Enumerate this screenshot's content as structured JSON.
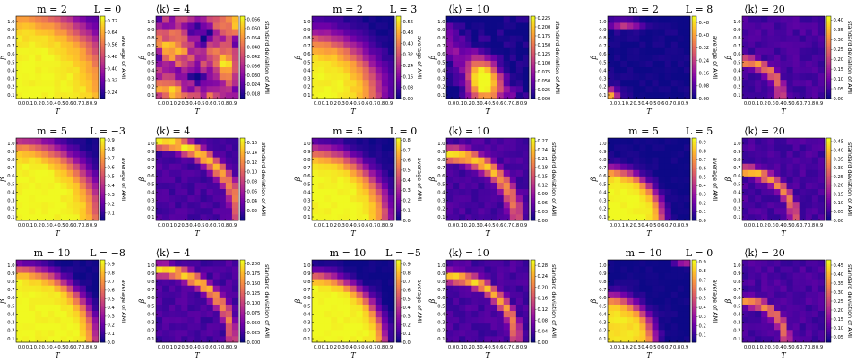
{
  "figure": {
    "colormap": "plasma",
    "colormap_stops": [
      "#0d0887",
      "#46039f",
      "#7201a8",
      "#9c179e",
      "#bd3786",
      "#d8576b",
      "#ed7953",
      "#fb9f3a",
      "#fdca26",
      "#f0f921"
    ],
    "x_ticks": [
      "0.0",
      "0.1",
      "0.2",
      "0.3",
      "0.4",
      "0.5",
      "0.6",
      "0.7",
      "0.8",
      "0.9"
    ],
    "y_ticks": [
      "0.1",
      "0.2",
      "0.3",
      "0.4",
      "0.5",
      "0.6",
      "0.7",
      "0.8",
      "0.9",
      "1.0"
    ]
  },
  "chart_data": [
    {
      "type": "heatmap",
      "group": 0,
      "panel": "average",
      "title": {
        "m": "m = 2",
        "L": "L = 0",
        "k": "⟨k⟩ = 4"
      },
      "xlabel": "T",
      "ylabel": "β",
      "cblabel": "average of AMI",
      "cb_ticks": [
        "0.24",
        "0.32",
        "0.40",
        "0.48",
        "0.56",
        "0.64",
        "0.72"
      ],
      "vmin": 0.2,
      "vmax": 0.75,
      "pattern": "avg",
      "params": {
        "r": 1.1,
        "w": 0.35
      }
    },
    {
      "type": "heatmap",
      "group": 0,
      "panel": "std",
      "xlabel": "T",
      "ylabel": "β",
      "cblabel": "standard deviation of AMI",
      "cb_ticks": [
        "0.018",
        "0.024",
        "0.030",
        "0.036",
        "0.042",
        "0.048",
        "0.054",
        "0.060",
        "0.066"
      ],
      "vmin": 0.015,
      "vmax": 0.068,
      "pattern": "noise",
      "params": {}
    },
    {
      "type": "heatmap",
      "group": 1,
      "panel": "average",
      "title": {
        "m": "m = 2",
        "L": "L = 3",
        "k": "⟨k⟩ = 10"
      },
      "xlabel": "T",
      "ylabel": "β",
      "cblabel": "average of AMI",
      "cb_ticks": [
        "0.00",
        "0.08",
        "0.16",
        "0.24",
        "0.32",
        "0.40",
        "0.48",
        "0.56"
      ],
      "vmin": 0,
      "vmax": 0.6,
      "pattern": "avg",
      "params": {
        "r": 0.75,
        "w": 0.3
      }
    },
    {
      "type": "heatmap",
      "group": 1,
      "panel": "std",
      "xlabel": "T",
      "ylabel": "β",
      "cblabel": "standard deviation of AMI",
      "cb_ticks": [
        "0.000",
        "0.025",
        "0.050",
        "0.075",
        "0.100",
        "0.125",
        "0.150",
        "0.175",
        "0.200",
        "0.225"
      ],
      "vmin": 0,
      "vmax": 0.23,
      "pattern": "blob",
      "params": {
        "cx": 0.45,
        "cy": 0.2,
        "s": 0.18
      }
    },
    {
      "type": "heatmap",
      "group": 2,
      "panel": "average",
      "title": {
        "m": "m = 2",
        "L": "L = 8",
        "k": "⟨k⟩ = 20"
      },
      "xlabel": "T",
      "ylabel": "β",
      "cblabel": "average of AMI",
      "cb_ticks": [
        "0.00",
        "0.08",
        "0.16",
        "0.24",
        "0.32",
        "0.40",
        "0.48"
      ],
      "vmin": 0,
      "vmax": 0.52,
      "pattern": "corner",
      "params": {}
    },
    {
      "type": "heatmap",
      "group": 2,
      "panel": "std",
      "xlabel": "T",
      "ylabel": "β",
      "cblabel": "standard deviation of AMI",
      "cb_ticks": [
        "0.00",
        "0.05",
        "0.10",
        "0.15",
        "0.20",
        "0.25",
        "0.30",
        "0.35",
        "0.40"
      ],
      "vmin": 0,
      "vmax": 0.42,
      "pattern": "ring",
      "params": {
        "r": 0.45,
        "w": 0.07
      }
    },
    {
      "type": "heatmap",
      "group": 3,
      "panel": "average",
      "title": {
        "m": "m = 5",
        "L": "L = −3",
        "k": "⟨k⟩ = 4"
      },
      "xlabel": "T",
      "ylabel": "β",
      "cblabel": "average of AMI",
      "cb_ticks": [
        "0.1",
        "0.2",
        "0.3",
        "0.4",
        "0.5",
        "0.6",
        "0.7",
        "0.8",
        "0.9"
      ],
      "vmin": 0.02,
      "vmax": 0.92,
      "pattern": "avg",
      "params": {
        "r": 0.95,
        "w": 0.22
      }
    },
    {
      "type": "heatmap",
      "group": 3,
      "panel": "std",
      "xlabel": "T",
      "ylabel": "β",
      "cblabel": "standard deviation of AMI",
      "cb_ticks": [
        "0.02",
        "0.04",
        "0.06",
        "0.08",
        "0.10",
        "0.12",
        "0.14",
        "0.16"
      ],
      "vmin": 0,
      "vmax": 0.17,
      "pattern": "ring",
      "params": {
        "r": 0.95,
        "w": 0.09
      }
    },
    {
      "type": "heatmap",
      "group": 4,
      "panel": "average",
      "title": {
        "m": "m = 5",
        "L": "L = 0",
        "k": "⟨k⟩ = 10"
      },
      "xlabel": "T",
      "ylabel": "β",
      "cblabel": "average of AMI",
      "cb_ticks": [
        "0.0",
        "0.1",
        "0.2",
        "0.3",
        "0.4",
        "0.5",
        "0.6",
        "0.7",
        "0.8"
      ],
      "vmin": 0,
      "vmax": 0.82,
      "pattern": "avg",
      "params": {
        "r": 0.85,
        "w": 0.2
      }
    },
    {
      "type": "heatmap",
      "group": 4,
      "panel": "std",
      "xlabel": "T",
      "ylabel": "β",
      "cblabel": "standard deviation of AMI",
      "cb_ticks": [
        "0.00",
        "0.03",
        "0.06",
        "0.09",
        "0.12",
        "0.15",
        "0.18",
        "0.21",
        "0.24",
        "0.27"
      ],
      "vmin": 0,
      "vmax": 0.28,
      "pattern": "ring",
      "params": {
        "r": 0.8,
        "w": 0.1
      }
    },
    {
      "type": "heatmap",
      "group": 5,
      "panel": "average",
      "title": {
        "m": "m = 5",
        "L": "L = 5",
        "k": "⟨k⟩ = 20"
      },
      "xlabel": "T",
      "ylabel": "β",
      "cblabel": "average of AMI",
      "cb_ticks": [
        "0.0",
        "0.1",
        "0.2",
        "0.3",
        "0.4",
        "0.5",
        "0.6",
        "0.7",
        "0.8",
        "0.9"
      ],
      "vmin": 0,
      "vmax": 0.95,
      "pattern": "avg",
      "params": {
        "r": 0.62,
        "w": 0.12
      }
    },
    {
      "type": "heatmap",
      "group": 5,
      "panel": "std",
      "xlabel": "T",
      "ylabel": "β",
      "cblabel": "standard deviation of AMI",
      "cb_ticks": [
        "0.00",
        "0.05",
        "0.10",
        "0.15",
        "0.20",
        "0.25",
        "0.30",
        "0.35",
        "0.40",
        "0.45"
      ],
      "vmin": 0,
      "vmax": 0.47,
      "pattern": "ring",
      "params": {
        "r": 0.6,
        "w": 0.07
      }
    },
    {
      "type": "heatmap",
      "group": 6,
      "panel": "average",
      "title": {
        "m": "m = 10",
        "L": "L = −8",
        "k": "⟨k⟩ = 4"
      },
      "xlabel": "T",
      "ylabel": "β",
      "cblabel": "average of AMI",
      "cb_ticks": [
        "0.0",
        "0.1",
        "0.2",
        "0.3",
        "0.4",
        "0.5",
        "0.6",
        "0.7",
        "0.8",
        "0.9"
      ],
      "vmin": 0,
      "vmax": 0.95,
      "pattern": "avg",
      "params": {
        "r": 0.9,
        "w": 0.15
      }
    },
    {
      "type": "heatmap",
      "group": 6,
      "panel": "std",
      "xlabel": "T",
      "ylabel": "β",
      "cblabel": "standard deviation of AMI",
      "cb_ticks": [
        "0.000",
        "0.025",
        "0.050",
        "0.075",
        "0.100",
        "0.125",
        "0.150",
        "0.175",
        "0.200"
      ],
      "vmin": 0,
      "vmax": 0.21,
      "pattern": "ring",
      "params": {
        "r": 0.88,
        "w": 0.08
      }
    },
    {
      "type": "heatmap",
      "group": 7,
      "panel": "average",
      "title": {
        "m": "m = 10",
        "L": "L = −5",
        "k": "⟨k⟩ = 10"
      },
      "xlabel": "T",
      "ylabel": "β",
      "cblabel": "average of AMI",
      "cb_ticks": [
        "0.0",
        "0.1",
        "0.2",
        "0.3",
        "0.4",
        "0.5",
        "0.6",
        "0.7",
        "0.8",
        "0.9"
      ],
      "vmin": 0,
      "vmax": 0.95,
      "pattern": "avg",
      "params": {
        "r": 0.82,
        "w": 0.13
      }
    },
    {
      "type": "heatmap",
      "group": 7,
      "panel": "std",
      "xlabel": "T",
      "ylabel": "β",
      "cblabel": "standard deviation of AMI",
      "cb_ticks": [
        "0.00",
        "0.04",
        "0.08",
        "0.12",
        "0.16",
        "0.20",
        "0.24",
        "0.28"
      ],
      "vmin": 0,
      "vmax": 0.3,
      "pattern": "ring",
      "params": {
        "r": 0.8,
        "w": 0.08
      }
    },
    {
      "type": "heatmap",
      "group": 8,
      "panel": "average",
      "title": {
        "m": "m = 10",
        "L": "L = 0",
        "k": "⟨k⟩ = 20"
      },
      "xlabel": "T",
      "ylabel": "β",
      "cblabel": "average of AMI",
      "cb_ticks": [
        "0.1",
        "0.2",
        "0.3",
        "0.4",
        "0.5",
        "0.6",
        "0.7",
        "0.8",
        "0.9"
      ],
      "vmin": 0.02,
      "vmax": 0.92,
      "pattern": "band",
      "params": {
        "r": 0.55,
        "w": 0.14
      }
    },
    {
      "type": "heatmap",
      "group": 8,
      "panel": "std",
      "xlabel": "T",
      "ylabel": "β",
      "cblabel": "standard deviation of AMI",
      "cb_ticks": [
        "0.05",
        "0.10",
        "0.15",
        "0.20",
        "0.25",
        "0.30",
        "0.35",
        "0.40",
        "0.45"
      ],
      "vmin": 0.02,
      "vmax": 0.48,
      "pattern": "ring",
      "params": {
        "r": 0.5,
        "w": 0.07
      }
    }
  ]
}
